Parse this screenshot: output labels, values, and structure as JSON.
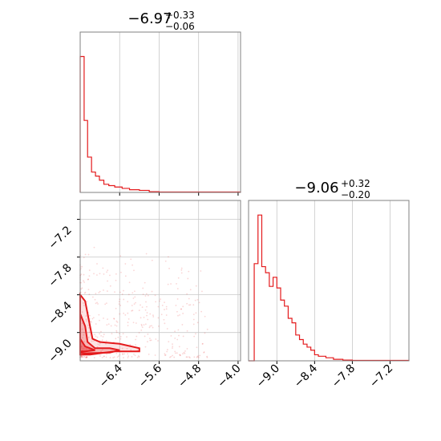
{
  "colors": {
    "accent": "#e41a1c",
    "grid": "#c8c8c8",
    "frame": "#808080"
  },
  "chart_data": [
    {
      "type": "histogram",
      "panel": "top-left",
      "title": {
        "main": "−6.97",
        "plus": "+0.33",
        "minus": "−0.06"
      },
      "xlim": [
        -7.2,
        -3.95
      ],
      "x_ticks": [
        -6.4,
        -5.6,
        -4.8,
        -4.0
      ],
      "grid": true,
      "bins": [
        {
          "x0": -7.2,
          "x1": -7.12,
          "count": 100
        },
        {
          "x0": -7.12,
          "x1": -7.05,
          "count": 53
        },
        {
          "x0": -7.05,
          "x1": -6.97,
          "count": 26
        },
        {
          "x0": -6.97,
          "x1": -6.89,
          "count": 15
        },
        {
          "x0": -6.89,
          "x1": -6.81,
          "count": 12
        },
        {
          "x0": -6.81,
          "x1": -6.72,
          "count": 9
        },
        {
          "x0": -6.72,
          "x1": -6.62,
          "count": 6
        },
        {
          "x0": -6.62,
          "x1": -6.5,
          "count": 5
        },
        {
          "x0": -6.5,
          "x1": -6.35,
          "count": 4
        },
        {
          "x0": -6.35,
          "x1": -6.2,
          "count": 3
        },
        {
          "x0": -6.2,
          "x1": -6.0,
          "count": 2
        },
        {
          "x0": -6.0,
          "x1": -5.8,
          "count": 1.5
        },
        {
          "x0": -5.8,
          "x1": -5.6,
          "count": 0.5
        },
        {
          "x0": -5.6,
          "x1": -3.95,
          "count": 0.3
        }
      ]
    },
    {
      "type": "scatter",
      "panel": "bottom-left",
      "xlim": [
        -7.2,
        -3.95
      ],
      "ylim": [
        -9.45,
        -6.9
      ],
      "x_ticks": [
        -6.4,
        -5.6,
        -4.8,
        -4.0
      ],
      "y_ticks": [
        -9.0,
        -8.4,
        -7.8,
        -7.2
      ],
      "grid": true,
      "contours": [
        {
          "name": "outer",
          "points": [
            [
              -7.2,
              -8.4
            ],
            [
              -7.1,
              -8.5
            ],
            [
              -7.0,
              -8.9
            ],
            [
              -6.95,
              -9.1
            ],
            [
              -6.8,
              -9.15
            ],
            [
              -6.4,
              -9.18
            ],
            [
              -6.0,
              -9.25
            ],
            [
              -6.0,
              -9.3
            ],
            [
              -6.5,
              -9.3
            ],
            [
              -7.0,
              -9.35
            ],
            [
              -7.2,
              -9.35
            ]
          ]
        },
        {
          "name": "middle",
          "points": [
            [
              -7.2,
              -8.7
            ],
            [
              -7.1,
              -8.9
            ],
            [
              -7.05,
              -9.15
            ],
            [
              -6.9,
              -9.25
            ],
            [
              -6.6,
              -9.25
            ],
            [
              -6.4,
              -9.28
            ],
            [
              -6.6,
              -9.32
            ],
            [
              -7.1,
              -9.33
            ],
            [
              -7.2,
              -9.32
            ]
          ]
        },
        {
          "name": "inner",
          "points": [
            [
              -7.2,
              -9.1
            ],
            [
              -7.1,
              -9.22
            ],
            [
              -6.9,
              -9.28
            ],
            [
              -7.1,
              -9.3
            ],
            [
              -7.2,
              -9.3
            ]
          ]
        }
      ]
    },
    {
      "type": "histogram",
      "panel": "bottom-right",
      "title": {
        "main": "−9.06",
        "plus": "+0.32",
        "minus": "−0.20"
      },
      "xlim": [
        -9.45,
        -6.9
      ],
      "x_ticks": [
        -9.0,
        -8.4,
        -7.8,
        -7.2
      ],
      "grid": true,
      "bins": [
        {
          "x0": -9.45,
          "x1": -9.36,
          "count": 0
        },
        {
          "x0": -9.36,
          "x1": -9.3,
          "count": 64
        },
        {
          "x0": -9.3,
          "x1": -9.24,
          "count": 96
        },
        {
          "x0": -9.24,
          "x1": -9.18,
          "count": 62
        },
        {
          "x0": -9.18,
          "x1": -9.12,
          "count": 58
        },
        {
          "x0": -9.12,
          "x1": -9.06,
          "count": 49
        },
        {
          "x0": -9.06,
          "x1": -9.0,
          "count": 55
        },
        {
          "x0": -9.0,
          "x1": -8.94,
          "count": 48
        },
        {
          "x0": -8.94,
          "x1": -8.88,
          "count": 40
        },
        {
          "x0": -8.88,
          "x1": -8.82,
          "count": 36
        },
        {
          "x0": -8.82,
          "x1": -8.76,
          "count": 28
        },
        {
          "x0": -8.76,
          "x1": -8.7,
          "count": 25
        },
        {
          "x0": -8.7,
          "x1": -8.64,
          "count": 17
        },
        {
          "x0": -8.64,
          "x1": -8.58,
          "count": 14
        },
        {
          "x0": -8.58,
          "x1": -8.52,
          "count": 11
        },
        {
          "x0": -8.52,
          "x1": -8.46,
          "count": 9
        },
        {
          "x0": -8.46,
          "x1": -8.4,
          "count": 7
        },
        {
          "x0": -8.4,
          "x1": -8.34,
          "count": 4
        },
        {
          "x0": -8.34,
          "x1": -8.22,
          "count": 3
        },
        {
          "x0": -8.22,
          "x1": -8.1,
          "count": 2
        },
        {
          "x0": -8.1,
          "x1": -7.95,
          "count": 1
        },
        {
          "x0": -7.95,
          "x1": -7.8,
          "count": 0.5
        },
        {
          "x0": -7.8,
          "x1": -6.9,
          "count": 0.3
        }
      ]
    }
  ]
}
